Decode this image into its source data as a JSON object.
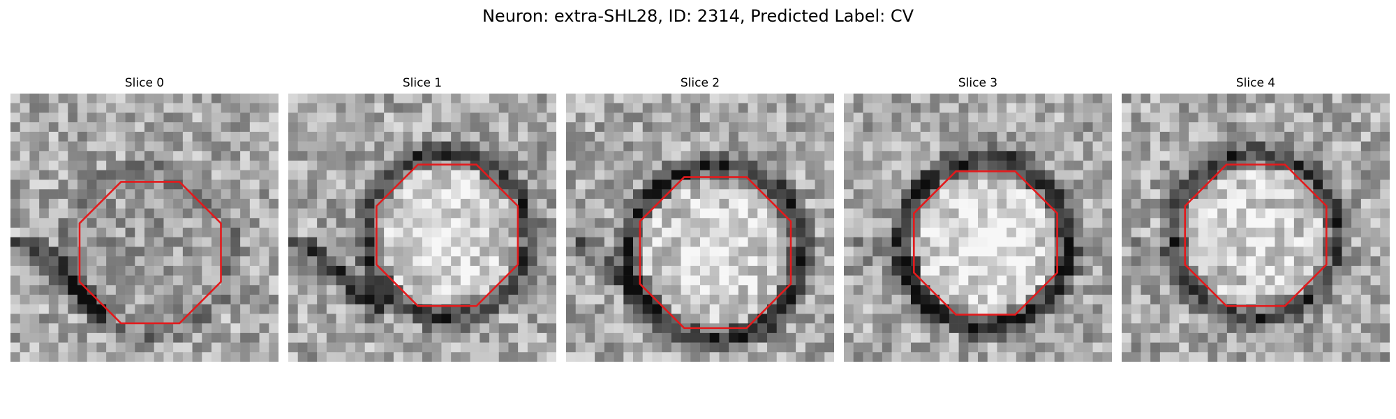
{
  "title": "Neuron: extra-SHL28, ID: 2314, Predicted Label: CV",
  "panels": [
    {
      "title": "Slice 0",
      "seed": 11,
      "background": "grid-0"
    },
    {
      "title": "Slice 1",
      "seed": 23,
      "background": "grid-1"
    },
    {
      "title": "Slice 2",
      "seed": 37,
      "background": "grid-2"
    },
    {
      "title": "Slice 3",
      "seed": 41,
      "background": "grid-3"
    },
    {
      "title": "Slice 4",
      "seed": 53,
      "background": "grid-4"
    }
  ],
  "colors": {
    "outline": "#e31a1c",
    "background": "#ffffff"
  }
}
